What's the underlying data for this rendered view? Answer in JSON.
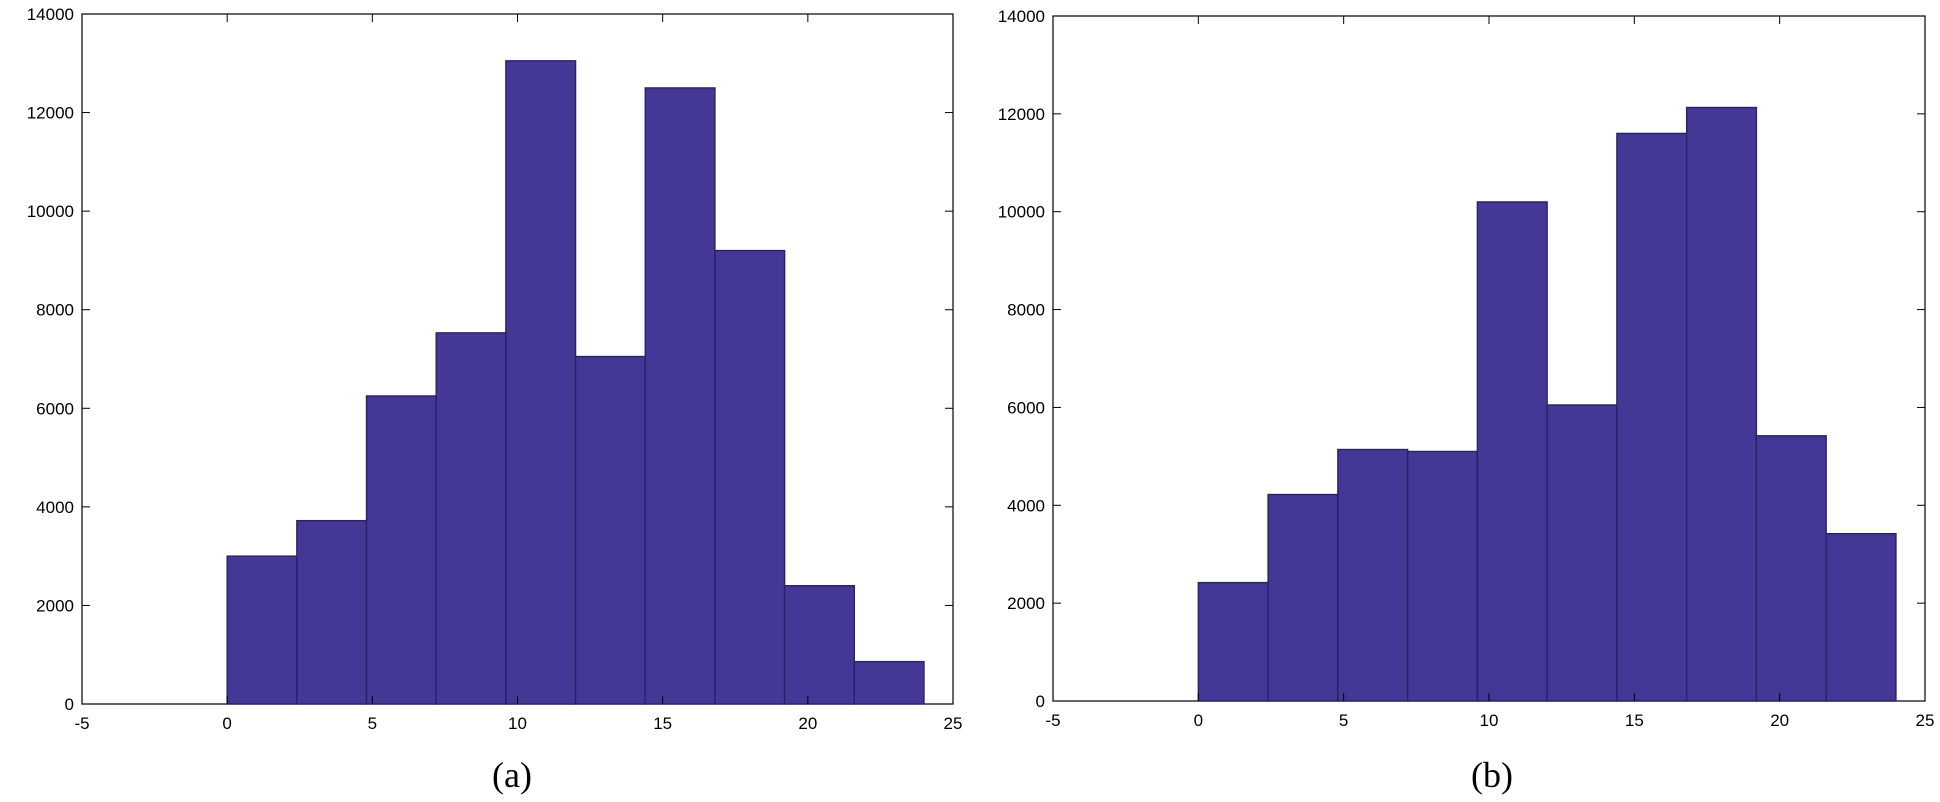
{
  "colors": {
    "bar_fill": "#433895",
    "bar_edge": "#2a2266",
    "axis": "#000000",
    "background": "#ffffff"
  },
  "chart_data": [
    {
      "type": "bar",
      "label": "(a)",
      "bin_edges": [
        0,
        2.4,
        4.8,
        7.2,
        9.6,
        12,
        14.4,
        16.8,
        19.2,
        21.6,
        24
      ],
      "values": [
        3000,
        3720,
        6250,
        7530,
        13050,
        7050,
        12500,
        9200,
        2400,
        860
      ],
      "xlim": [
        -5,
        25
      ],
      "ylim": [
        0,
        14000
      ],
      "xticks": [
        -5,
        0,
        5,
        10,
        15,
        20,
        25
      ],
      "yticks": [
        0,
        2000,
        4000,
        6000,
        8000,
        10000,
        12000,
        14000
      ],
      "xlabel": "",
      "ylabel": "",
      "title": ""
    },
    {
      "type": "bar",
      "label": "(b)",
      "bin_edges": [
        0,
        2.4,
        4.8,
        7.2,
        9.6,
        12,
        14.4,
        16.8,
        19.2,
        21.6,
        24
      ],
      "values": [
        2420,
        4220,
        5140,
        5100,
        10200,
        6050,
        11600,
        12130,
        5420,
        3420
      ],
      "xlim": [
        -5,
        25
      ],
      "ylim": [
        0,
        14000
      ],
      "xticks": [
        -5,
        0,
        5,
        10,
        15,
        20,
        25
      ],
      "yticks": [
        0,
        2000,
        4000,
        6000,
        8000,
        10000,
        12000,
        14000
      ],
      "xlabel": "",
      "ylabel": "",
      "title": ""
    }
  ]
}
